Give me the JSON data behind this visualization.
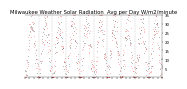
{
  "title": "Milwaukee Weather Solar Radiation  Avg per Day W/m2/minute",
  "title_fontsize": 3.8,
  "background_color": "#ffffff",
  "plot_bg_color": "#ffffff",
  "grid_color": "#999999",
  "ylim": [
    0,
    35
  ],
  "yticks": [
    5,
    10,
    15,
    20,
    25,
    30,
    35
  ],
  "ytick_fontsize": 2.8,
  "xtick_fontsize": 2.5,
  "num_points": 365,
  "red_color": "#ff0000",
  "black_color": "#000000",
  "marker_size": 0.6,
  "num_years": 10,
  "seed": 7
}
